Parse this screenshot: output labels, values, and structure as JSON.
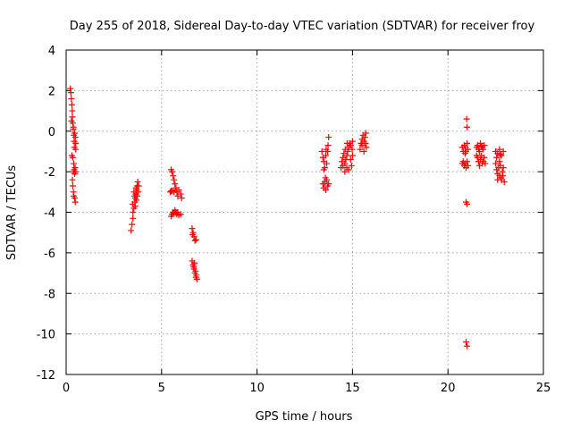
{
  "chart_data": {
    "type": "scatter",
    "title": "Day 255 of 2018, Sidereal Day-to-day VTEC variation (SDTVAR) for receiver froy",
    "xlabel": "GPS time / hours",
    "ylabel": "SDTVAR / TECUs",
    "xlim": [
      0,
      25
    ],
    "ylim": [
      -12,
      4
    ],
    "xticks": [
      0,
      5,
      10,
      15,
      20,
      25
    ],
    "yticks": [
      4,
      2,
      0,
      -2,
      -4,
      -6,
      -8,
      -10,
      -12
    ],
    "grid": true,
    "marker": "+",
    "colors": {
      "points": "#ff0000",
      "grid": "#a0a0a0",
      "axis": "#000000"
    },
    "series": [
      {
        "name": "SDTVAR",
        "points": [
          [
            0.22,
            2.1
          ],
          [
            0.25,
            1.9
          ],
          [
            0.27,
            1.6
          ],
          [
            0.3,
            1.3
          ],
          [
            0.32,
            1.0
          ],
          [
            0.33,
            0.7
          ],
          [
            0.35,
            0.4
          ],
          [
            0.37,
            0.1
          ],
          [
            0.4,
            -0.2
          ],
          [
            0.42,
            -0.5
          ],
          [
            0.28,
            0.5
          ],
          [
            0.38,
            0.2
          ],
          [
            0.45,
            -0.1
          ],
          [
            0.48,
            -0.3
          ],
          [
            0.5,
            -0.6
          ],
          [
            0.5,
            -0.9
          ],
          [
            0.43,
            -0.8
          ],
          [
            0.3,
            -1.2
          ],
          [
            0.35,
            -1.3
          ],
          [
            0.4,
            -1.6
          ],
          [
            0.42,
            -1.9
          ],
          [
            0.45,
            -2.1
          ],
          [
            0.38,
            -2.0
          ],
          [
            0.47,
            -1.8
          ],
          [
            0.5,
            -2.0
          ],
          [
            0.33,
            -2.4
          ],
          [
            0.35,
            -2.7
          ],
          [
            0.38,
            -3.0
          ],
          [
            0.4,
            -3.2
          ],
          [
            0.45,
            -3.3
          ],
          [
            0.48,
            -3.5
          ],
          [
            3.4,
            -4.9
          ],
          [
            3.45,
            -4.6
          ],
          [
            3.5,
            -4.3
          ],
          [
            3.5,
            -4.0
          ],
          [
            3.55,
            -3.8
          ],
          [
            3.6,
            -3.5
          ],
          [
            3.62,
            -3.3
          ],
          [
            3.65,
            -3.1
          ],
          [
            3.7,
            -2.9
          ],
          [
            3.72,
            -2.7
          ],
          [
            3.75,
            -2.5
          ],
          [
            3.55,
            -3.0
          ],
          [
            3.62,
            -3.7
          ],
          [
            3.68,
            -3.4
          ],
          [
            3.72,
            -3.2
          ],
          [
            3.78,
            -3.0
          ],
          [
            3.8,
            -2.7
          ],
          [
            3.58,
            -3.2
          ],
          [
            3.48,
            -3.6
          ],
          [
            3.66,
            -2.8
          ],
          [
            5.5,
            -1.9
          ],
          [
            5.55,
            -2.0
          ],
          [
            5.6,
            -2.2
          ],
          [
            5.65,
            -2.4
          ],
          [
            5.7,
            -2.6
          ],
          [
            5.75,
            -2.8
          ],
          [
            5.8,
            -3.0
          ],
          [
            5.85,
            -3.2
          ],
          [
            5.9,
            -2.9
          ],
          [
            6.0,
            -3.1
          ],
          [
            6.05,
            -3.3
          ],
          [
            5.45,
            -3.0
          ],
          [
            5.55,
            -2.95
          ],
          [
            5.65,
            -3.0
          ],
          [
            5.75,
            -2.9
          ],
          [
            5.5,
            -2.95
          ],
          [
            5.5,
            -4.2
          ],
          [
            5.55,
            -4.1
          ],
          [
            5.6,
            -4.0
          ],
          [
            5.65,
            -4.05
          ],
          [
            5.7,
            -3.9
          ],
          [
            5.75,
            -4.0
          ],
          [
            5.8,
            -4.1
          ],
          [
            5.85,
            -4.0
          ],
          [
            5.9,
            -4.15
          ],
          [
            6.0,
            -4.1
          ],
          [
            6.6,
            -4.8
          ],
          [
            6.65,
            -5.0
          ],
          [
            6.7,
            -5.2
          ],
          [
            6.75,
            -5.4
          ],
          [
            6.8,
            -5.35
          ],
          [
            6.62,
            -5.1
          ],
          [
            6.6,
            -6.4
          ],
          [
            6.65,
            -6.6
          ],
          [
            6.7,
            -6.8
          ],
          [
            6.75,
            -7.0
          ],
          [
            6.8,
            -7.2
          ],
          [
            6.85,
            -7.3
          ],
          [
            6.72,
            -6.5
          ],
          [
            6.78,
            -6.9
          ],
          [
            6.82,
            -7.1
          ],
          [
            6.68,
            -6.7
          ],
          [
            13.4,
            -1.0
          ],
          [
            13.45,
            -1.3
          ],
          [
            13.5,
            -1.5
          ],
          [
            13.55,
            -1.8
          ],
          [
            13.6,
            -1.2
          ],
          [
            13.65,
            -1.6
          ],
          [
            13.7,
            -1.0
          ],
          [
            13.72,
            -0.7
          ],
          [
            13.75,
            -0.3
          ],
          [
            13.62,
            -0.9
          ],
          [
            13.5,
            -1.9
          ],
          [
            13.45,
            -2.6
          ],
          [
            13.5,
            -2.8
          ],
          [
            13.55,
            -2.5
          ],
          [
            13.6,
            -2.9
          ],
          [
            13.65,
            -2.4
          ],
          [
            13.7,
            -2.7
          ],
          [
            13.75,
            -2.6
          ],
          [
            13.58,
            -2.3
          ],
          [
            14.4,
            -1.8
          ],
          [
            14.45,
            -1.5
          ],
          [
            14.5,
            -1.3
          ],
          [
            14.55,
            -1.1
          ],
          [
            14.6,
            -1.6
          ],
          [
            14.65,
            -1.4
          ],
          [
            14.7,
            -1.2
          ],
          [
            14.75,
            -1.0
          ],
          [
            14.8,
            -0.8
          ],
          [
            14.85,
            -0.6
          ],
          [
            14.9,
            -1.4
          ],
          [
            14.95,
            -1.7
          ],
          [
            15.0,
            -1.2
          ],
          [
            14.62,
            -0.9
          ],
          [
            14.72,
            -0.6
          ],
          [
            14.8,
            -1.9
          ],
          [
            14.9,
            -0.7
          ],
          [
            14.5,
            -1.7
          ],
          [
            14.6,
            -2.0
          ],
          [
            14.7,
            -1.8
          ],
          [
            15.0,
            -0.5
          ],
          [
            14.98,
            -0.9
          ],
          [
            15.4,
            -0.9
          ],
          [
            15.45,
            -0.6
          ],
          [
            15.5,
            -0.4
          ],
          [
            15.55,
            -0.2
          ],
          [
            15.6,
            -0.5
          ],
          [
            15.65,
            -0.3
          ],
          [
            15.7,
            -0.1
          ],
          [
            15.72,
            -0.8
          ],
          [
            15.6,
            -1.0
          ],
          [
            15.5,
            -0.7
          ],
          [
            15.68,
            -0.6
          ],
          [
            20.8,
            -1.0
          ],
          [
            20.85,
            -0.7
          ],
          [
            20.9,
            -0.8
          ],
          [
            20.95,
            -1.0
          ],
          [
            21.0,
            -0.6
          ],
          [
            21.05,
            -0.9
          ],
          [
            20.75,
            -0.8
          ],
          [
            20.9,
            -1.1
          ],
          [
            20.8,
            -1.5
          ],
          [
            20.85,
            -1.7
          ],
          [
            20.9,
            -1.6
          ],
          [
            20.95,
            -1.8
          ],
          [
            21.0,
            -1.5
          ],
          [
            21.05,
            -1.7
          ],
          [
            20.75,
            -1.6
          ],
          [
            20.98,
            0.6
          ],
          [
            21.0,
            0.2
          ],
          [
            20.95,
            -3.5
          ],
          [
            21.0,
            -3.6
          ],
          [
            20.95,
            -10.4
          ],
          [
            21.0,
            -10.6
          ],
          [
            21.5,
            -0.8
          ],
          [
            21.55,
            -0.7
          ],
          [
            21.6,
            -0.9
          ],
          [
            21.7,
            -0.6
          ],
          [
            21.8,
            -0.8
          ],
          [
            21.9,
            -0.7
          ],
          [
            21.65,
            -1.0
          ],
          [
            21.75,
            -0.75
          ],
          [
            21.85,
            -0.9
          ],
          [
            21.5,
            -1.2
          ],
          [
            21.55,
            -1.3
          ],
          [
            21.6,
            -1.5
          ],
          [
            21.7,
            -1.4
          ],
          [
            21.8,
            -1.6
          ],
          [
            21.9,
            -1.3
          ],
          [
            21.65,
            -1.7
          ],
          [
            21.75,
            -1.2
          ],
          [
            21.85,
            -1.5
          ],
          [
            21.95,
            -1.6
          ],
          [
            22.5,
            -1.0
          ],
          [
            22.6,
            -1.1
          ],
          [
            22.7,
            -0.9
          ],
          [
            22.8,
            -1.2
          ],
          [
            22.9,
            -1.0
          ],
          [
            22.55,
            -1.3
          ],
          [
            22.75,
            -1.15
          ],
          [
            22.5,
            -1.6
          ],
          [
            22.55,
            -1.9
          ],
          [
            22.6,
            -2.1
          ],
          [
            22.65,
            -1.8
          ],
          [
            22.7,
            -2.2
          ],
          [
            22.75,
            -1.7
          ],
          [
            22.8,
            -2.4
          ],
          [
            22.85,
            -2.0
          ],
          [
            22.9,
            -1.8
          ],
          [
            22.95,
            -2.5
          ],
          [
            22.6,
            -2.4
          ],
          [
            22.7,
            -1.5
          ],
          [
            22.78,
            -2.3
          ],
          [
            22.88,
            -2.2
          ]
        ]
      }
    ]
  }
}
